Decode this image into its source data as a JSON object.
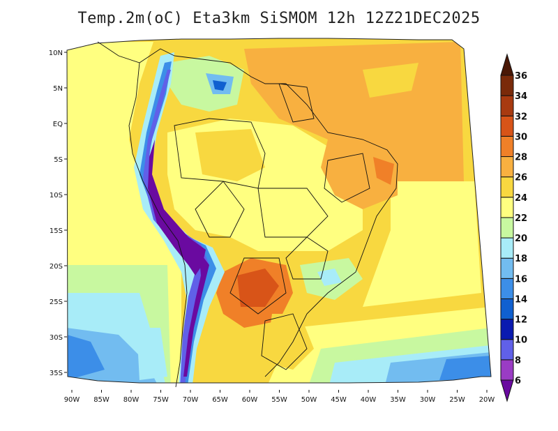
{
  "title": "Temp.2m(oC) Eta3km SiSMOM 12h 12Z21DEC2025",
  "map": {
    "lon_labels": [
      "90W",
      "85W",
      "80W",
      "75W",
      "70W",
      "65W",
      "60W",
      "55W",
      "50W",
      "45W",
      "40W",
      "35W",
      "30W",
      "25W",
      "20W"
    ],
    "lon_values": [
      -90,
      -85,
      -80,
      -75,
      -70,
      -65,
      -60,
      -55,
      -50,
      -45,
      -40,
      -35,
      -30,
      -25,
      -20
    ],
    "lat_labels": [
      "10N",
      "5N",
      "EQ",
      "5S",
      "10S",
      "15S",
      "20S",
      "25S",
      "30S",
      "35S"
    ],
    "lat_values": [
      10,
      5,
      0,
      -5,
      -10,
      -15,
      -20,
      -25,
      -30,
      -35
    ],
    "lon_range": [
      -91,
      -20
    ],
    "lat_range": [
      -38,
      11
    ]
  },
  "colorbar": {
    "levels": [
      "6",
      "8",
      "10",
      "12",
      "14",
      "16",
      "18",
      "20",
      "22",
      "24",
      "26",
      "28",
      "30",
      "32",
      "34",
      "36"
    ],
    "colors": [
      "#6a0aa0",
      "#9a3cc4",
      "#6060e8",
      "#0a1ab0",
      "#1060d0",
      "#3c8ee8",
      "#72bcf0",
      "#a8ecf8",
      "#c8f8a0",
      "#ffff80",
      "#f8d840",
      "#f8b040",
      "#f08028",
      "#d85418",
      "#a83a10",
      "#7a2a0a",
      "#4a1806"
    ]
  }
}
